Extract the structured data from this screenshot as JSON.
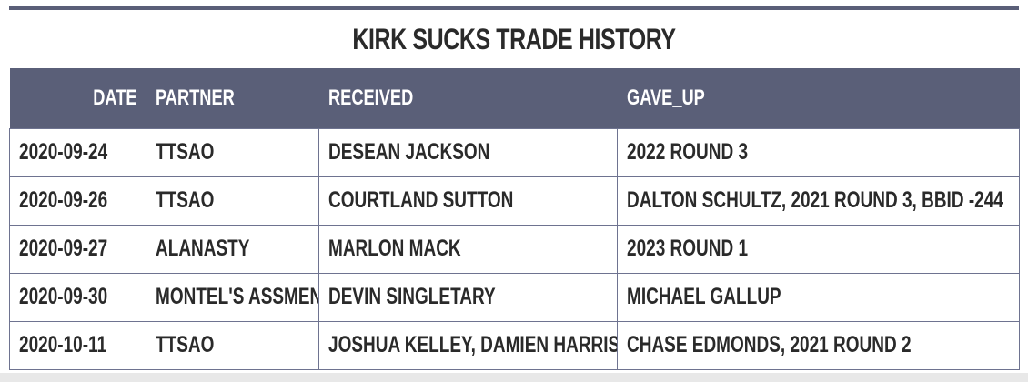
{
  "title": "KIRK SUCKS TRADE HISTORY",
  "columns": {
    "date": "DATE",
    "partner": "PARTNER",
    "received": "RECEIVED",
    "gave_up": "GAVE_UP"
  },
  "rows": [
    {
      "date": "2020-09-24",
      "partner": "TTSAO",
      "received": "DESEAN JACKSON",
      "gave_up": "2022 ROUND 3"
    },
    {
      "date": "2020-09-26",
      "partner": "TTSAO",
      "received": "COURTLAND SUTTON",
      "gave_up": "DALTON SCHULTZ, 2021 ROUND 3, BBID -244"
    },
    {
      "date": "2020-09-27",
      "partner": "ALANASTY",
      "received": "MARLON MACK",
      "gave_up": "2023 ROUND 1"
    },
    {
      "date": "2020-09-30",
      "partner": "MONTEL'S ASSMEN",
      "received": "DEVIN SINGLETARY",
      "gave_up": "MICHAEL GALLUP"
    },
    {
      "date": "2020-10-11",
      "partner": "TTSAO",
      "received": "JOSHUA KELLEY, DAMIEN HARRIS",
      "gave_up": "CHASE EDMONDS, 2021 ROUND 2"
    }
  ],
  "colors": {
    "header_bg": "#5a5f78",
    "header_text": "#ffffff",
    "body_text": "#2a2a2a",
    "grid": "#6e7390"
  }
}
